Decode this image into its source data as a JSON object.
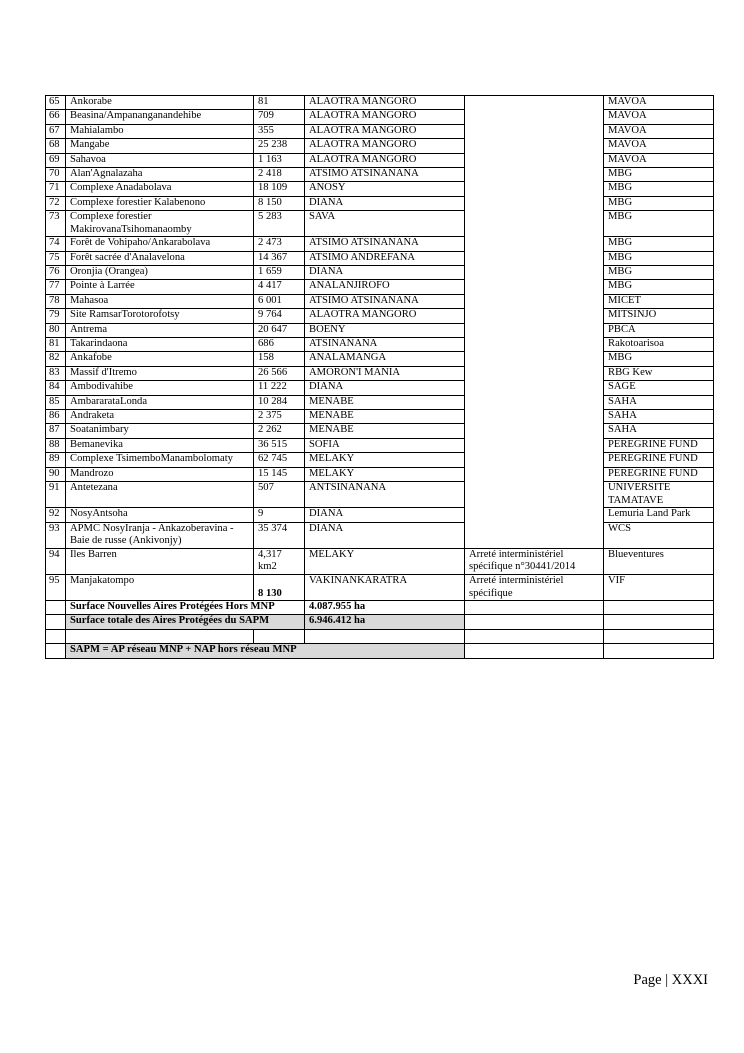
{
  "rows": [
    {
      "n": "65",
      "name": "Ankorabe",
      "area": "81",
      "region": "ALAOTRA MANGORO",
      "promoter": "MAVOA"
    },
    {
      "n": "66",
      "name": "Beasina/Ampananganandehibe",
      "area": "709",
      "region": "ALAOTRA MANGORO",
      "promoter": "MAVOA"
    },
    {
      "n": "67",
      "name": "Mahialambo",
      "area": "355",
      "region": "ALAOTRA MANGORO",
      "promoter": "MAVOA"
    },
    {
      "n": "68",
      "name": "Mangabe",
      "area": "25 238",
      "region": "ALAOTRA MANGORO",
      "promoter": "MAVOA"
    },
    {
      "n": "69",
      "name": "Sahavoa",
      "area": "1 163",
      "region": "ALAOTRA MANGORO",
      "promoter": "MAVOA"
    },
    {
      "n": "70",
      "name": "Alan'Agnalazaha",
      "area": "2 418",
      "region": "ATSIMO ATSINANANA",
      "promoter": "MBG"
    },
    {
      "n": "71",
      "name": "Complexe Anadabolava",
      "area": "18 109",
      "region": "ANOSY",
      "promoter": "MBG"
    },
    {
      "n": "72",
      "name": "Complexe forestier Kalabenono",
      "area": "8 150",
      "region": "DIANA",
      "promoter": "MBG"
    },
    {
      "n": "73",
      "name": "Complexe forestier MakirovanaTsihomanaomby",
      "area": "5 283",
      "region": "SAVA",
      "promoter": "MBG"
    },
    {
      "n": "74",
      "name": "Forêt de Vohipaho/Ankarabolava",
      "area": "2 473",
      "region": "ATSIMO ATSINANANA",
      "promoter": "MBG"
    },
    {
      "n": "75",
      "name": "Forêt sacrée d'Analavelona",
      "area": "14 367",
      "region": "ATSIMO ANDREFANA",
      "promoter": "MBG"
    },
    {
      "n": "76",
      "name": "Oronjia (Orangea)",
      "area": "1 659",
      "region": "DIANA",
      "promoter": "MBG"
    },
    {
      "n": "77",
      "name": "Pointe à Larrée",
      "area": "4 417",
      "region": "ANALANJIROFO",
      "promoter": "MBG"
    },
    {
      "n": "78",
      "name": "Mahasoa",
      "area": "6 001",
      "region": "ATSIMO ATSINANANA",
      "promoter": "MICET"
    },
    {
      "n": "79",
      "name": "Site RamsarTorotorofotsy",
      "area": "9 764",
      "region": "ALAOTRA MANGORO",
      "promoter": "MITSINJO"
    },
    {
      "n": "80",
      "name": "Antrema",
      "area": "20 647",
      "region": "BOENY",
      "promoter": "PBCA"
    },
    {
      "n": "81",
      "name": "Takarindaona",
      "area": "686",
      "region": "ATSINANANA",
      "promoter": "Rakotoarisoa"
    },
    {
      "n": "82",
      "name": "Ankafobe",
      "area": "158",
      "region": "ANALAMANGA",
      "promoter": "MBG"
    },
    {
      "n": "83",
      "name": "Massif d'Itremo",
      "area": "26 566",
      "region": "AMORON'I MANIA",
      "promoter": "RBG Kew"
    },
    {
      "n": "84",
      "name": "Ambodivahibe",
      "area": "11 222",
      "region": "DIANA",
      "promoter": "SAGE"
    },
    {
      "n": "85",
      "name": "AmbararataLonda",
      "area": "10 284",
      "region": "MENABE",
      "promoter": "SAHA"
    },
    {
      "n": "86",
      "name": "Andraketa",
      "area": "2 375",
      "region": "MENABE",
      "promoter": "SAHA"
    },
    {
      "n": "87",
      "name": "Soatanimbary",
      "area": "2 262",
      "region": "MENABE",
      "promoter": "SAHA"
    },
    {
      "n": "88",
      "name": "Bemanevika",
      "area": "36 515",
      "region": "SOFIA",
      "promoter": "PEREGRINE FUND"
    },
    {
      "n": "89",
      "name": "Complexe TsimemboManambolomaty",
      "area": "62 745",
      "region": "MELAKY",
      "promoter": "PEREGRINE FUND"
    },
    {
      "n": "90",
      "name": "Mandrozo",
      "area": "15 145",
      "region": "MELAKY",
      "promoter": "PEREGRINE FUND"
    },
    {
      "n": "91",
      "name": "Antetezana",
      "area": "507",
      "region": "ANTSINANANA",
      "promoter": "UNIVERSITE TAMATAVE"
    },
    {
      "n": "92",
      "name": "NosyAntsoha",
      "area": "9",
      "region": "DIANA",
      "promoter": "Lemuria Land Park"
    },
    {
      "n": "93",
      "name": "APMC NosyIranja - Ankazoberavina - Baie de russe (Ankivonjy)",
      "area": "35 374",
      "region": "DIANA",
      "promoter": "WCS"
    },
    {
      "n": "94",
      "name": "Iles Barren",
      "area": "4,317 km2",
      "region": "MELAKY",
      "legal": "Arreté interministériel spécifique n°30441/2014",
      "promoter": "Blueventures"
    },
    {
      "n": "95",
      "name": "Manjakatompo",
      "area": "8 130",
      "region": "VAKINANKARATRA",
      "legal": "Arreté interministériel spécifique",
      "promoter": "VIF"
    }
  ],
  "summary": {
    "new_label": "Surface Nouvelles Aires Protégées Hors MNP",
    "new_value": "4.087.955 ha",
    "total_label": "Surface totale des Aires Protégées du SAPM",
    "total_value": "6.946.412 ha",
    "formula": "SAPM = AP réseau MNP + NAP hors réseau MNP"
  },
  "footer": {
    "page_label": "Page",
    "page_number": "XXXI"
  }
}
